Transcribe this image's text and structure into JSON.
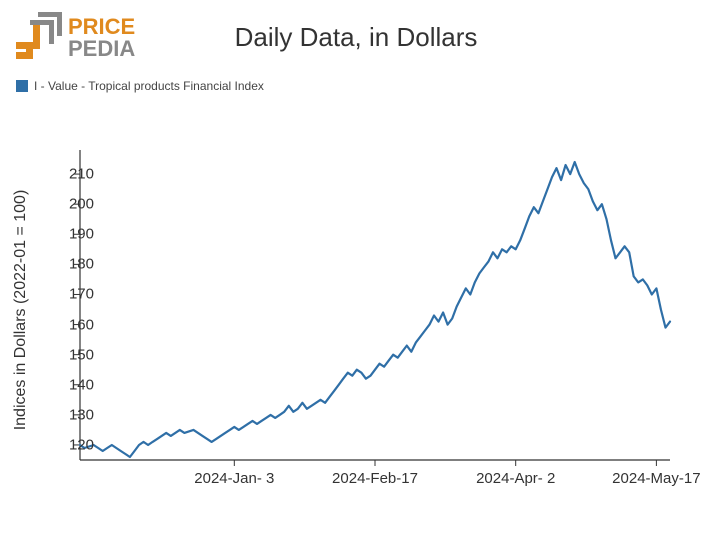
{
  "logo": {
    "text_top": "PRICE",
    "text_bottom": "PEDIA",
    "orange": "#E08A1E",
    "gray": "#888888"
  },
  "title": "Daily Data, in Dollars",
  "legend": {
    "color": "#2F6FA7",
    "label": "I - Value - Tropical products Financial Index"
  },
  "chart": {
    "type": "line",
    "line_color": "#2F6FA7",
    "line_width": 2.2,
    "background_color": "#ffffff",
    "axis_color": "#333333",
    "tick_color": "#333333",
    "tick_length": 6,
    "ylim": [
      115,
      218
    ],
    "yticks": [
      120,
      130,
      140,
      150,
      160,
      170,
      180,
      190,
      200,
      210
    ],
    "ylabel": "Indices in Dollars (2022-01 = 100)",
    "ylabel_fontsize": 16,
    "tick_fontsize": 15,
    "xlim": [
      0,
      130
    ],
    "xticks": [
      {
        "x": 34,
        "label": "2024-Jan- 3"
      },
      {
        "x": 65,
        "label": "2024-Feb-17"
      },
      {
        "x": 96,
        "label": "2024-Apr- 2"
      },
      {
        "x": 127,
        "label": "2024-May-17"
      }
    ],
    "series": [
      {
        "x": 0,
        "y": 120
      },
      {
        "x": 1,
        "y": 119
      },
      {
        "x": 2,
        "y": 119.5
      },
      {
        "x": 3,
        "y": 120
      },
      {
        "x": 4,
        "y": 119
      },
      {
        "x": 5,
        "y": 118
      },
      {
        "x": 6,
        "y": 119
      },
      {
        "x": 7,
        "y": 120
      },
      {
        "x": 8,
        "y": 119
      },
      {
        "x": 9,
        "y": 118
      },
      {
        "x": 10,
        "y": 117
      },
      {
        "x": 11,
        "y": 116
      },
      {
        "x": 12,
        "y": 118
      },
      {
        "x": 13,
        "y": 120
      },
      {
        "x": 14,
        "y": 121
      },
      {
        "x": 15,
        "y": 120
      },
      {
        "x": 16,
        "y": 121
      },
      {
        "x": 17,
        "y": 122
      },
      {
        "x": 18,
        "y": 123
      },
      {
        "x": 19,
        "y": 124
      },
      {
        "x": 20,
        "y": 123
      },
      {
        "x": 21,
        "y": 124
      },
      {
        "x": 22,
        "y": 125
      },
      {
        "x": 23,
        "y": 124
      },
      {
        "x": 24,
        "y": 124.5
      },
      {
        "x": 25,
        "y": 125
      },
      {
        "x": 26,
        "y": 124
      },
      {
        "x": 27,
        "y": 123
      },
      {
        "x": 28,
        "y": 122
      },
      {
        "x": 29,
        "y": 121
      },
      {
        "x": 30,
        "y": 122
      },
      {
        "x": 31,
        "y": 123
      },
      {
        "x": 32,
        "y": 124
      },
      {
        "x": 33,
        "y": 125
      },
      {
        "x": 34,
        "y": 126
      },
      {
        "x": 35,
        "y": 125
      },
      {
        "x": 36,
        "y": 126
      },
      {
        "x": 37,
        "y": 127
      },
      {
        "x": 38,
        "y": 128
      },
      {
        "x": 39,
        "y": 127
      },
      {
        "x": 40,
        "y": 128
      },
      {
        "x": 41,
        "y": 129
      },
      {
        "x": 42,
        "y": 130
      },
      {
        "x": 43,
        "y": 129
      },
      {
        "x": 44,
        "y": 130
      },
      {
        "x": 45,
        "y": 131
      },
      {
        "x": 46,
        "y": 133
      },
      {
        "x": 47,
        "y": 131
      },
      {
        "x": 48,
        "y": 132
      },
      {
        "x": 49,
        "y": 134
      },
      {
        "x": 50,
        "y": 132
      },
      {
        "x": 51,
        "y": 133
      },
      {
        "x": 52,
        "y": 134
      },
      {
        "x": 53,
        "y": 135
      },
      {
        "x": 54,
        "y": 134
      },
      {
        "x": 55,
        "y": 136
      },
      {
        "x": 56,
        "y": 138
      },
      {
        "x": 57,
        "y": 140
      },
      {
        "x": 58,
        "y": 142
      },
      {
        "x": 59,
        "y": 144
      },
      {
        "x": 60,
        "y": 143
      },
      {
        "x": 61,
        "y": 145
      },
      {
        "x": 62,
        "y": 144
      },
      {
        "x": 63,
        "y": 142
      },
      {
        "x": 64,
        "y": 143
      },
      {
        "x": 65,
        "y": 145
      },
      {
        "x": 66,
        "y": 147
      },
      {
        "x": 67,
        "y": 146
      },
      {
        "x": 68,
        "y": 148
      },
      {
        "x": 69,
        "y": 150
      },
      {
        "x": 70,
        "y": 149
      },
      {
        "x": 71,
        "y": 151
      },
      {
        "x": 72,
        "y": 153
      },
      {
        "x": 73,
        "y": 151
      },
      {
        "x": 74,
        "y": 154
      },
      {
        "x": 75,
        "y": 156
      },
      {
        "x": 76,
        "y": 158
      },
      {
        "x": 77,
        "y": 160
      },
      {
        "x": 78,
        "y": 163
      },
      {
        "x": 79,
        "y": 161
      },
      {
        "x": 80,
        "y": 164
      },
      {
        "x": 81,
        "y": 160
      },
      {
        "x": 82,
        "y": 162
      },
      {
        "x": 83,
        "y": 166
      },
      {
        "x": 84,
        "y": 169
      },
      {
        "x": 85,
        "y": 172
      },
      {
        "x": 86,
        "y": 170
      },
      {
        "x": 87,
        "y": 174
      },
      {
        "x": 88,
        "y": 177
      },
      {
        "x": 89,
        "y": 179
      },
      {
        "x": 90,
        "y": 181
      },
      {
        "x": 91,
        "y": 184
      },
      {
        "x": 92,
        "y": 182
      },
      {
        "x": 93,
        "y": 185
      },
      {
        "x": 94,
        "y": 184
      },
      {
        "x": 95,
        "y": 186
      },
      {
        "x": 96,
        "y": 185
      },
      {
        "x": 97,
        "y": 188
      },
      {
        "x": 98,
        "y": 192
      },
      {
        "x": 99,
        "y": 196
      },
      {
        "x": 100,
        "y": 199
      },
      {
        "x": 101,
        "y": 197
      },
      {
        "x": 102,
        "y": 201
      },
      {
        "x": 103,
        "y": 205
      },
      {
        "x": 104,
        "y": 209
      },
      {
        "x": 105,
        "y": 212
      },
      {
        "x": 106,
        "y": 208
      },
      {
        "x": 107,
        "y": 213
      },
      {
        "x": 108,
        "y": 210
      },
      {
        "x": 109,
        "y": 214
      },
      {
        "x": 110,
        "y": 210
      },
      {
        "x": 111,
        "y": 207
      },
      {
        "x": 112,
        "y": 205
      },
      {
        "x": 113,
        "y": 201
      },
      {
        "x": 114,
        "y": 198
      },
      {
        "x": 115,
        "y": 200
      },
      {
        "x": 116,
        "y": 195
      },
      {
        "x": 117,
        "y": 188
      },
      {
        "x": 118,
        "y": 182
      },
      {
        "x": 119,
        "y": 184
      },
      {
        "x": 120,
        "y": 186
      },
      {
        "x": 121,
        "y": 184
      },
      {
        "x": 122,
        "y": 176
      },
      {
        "x": 123,
        "y": 174
      },
      {
        "x": 124,
        "y": 175
      },
      {
        "x": 125,
        "y": 173
      },
      {
        "x": 126,
        "y": 170
      },
      {
        "x": 127,
        "y": 172
      },
      {
        "x": 128,
        "y": 165
      },
      {
        "x": 129,
        "y": 159
      },
      {
        "x": 130,
        "y": 161
      }
    ]
  }
}
